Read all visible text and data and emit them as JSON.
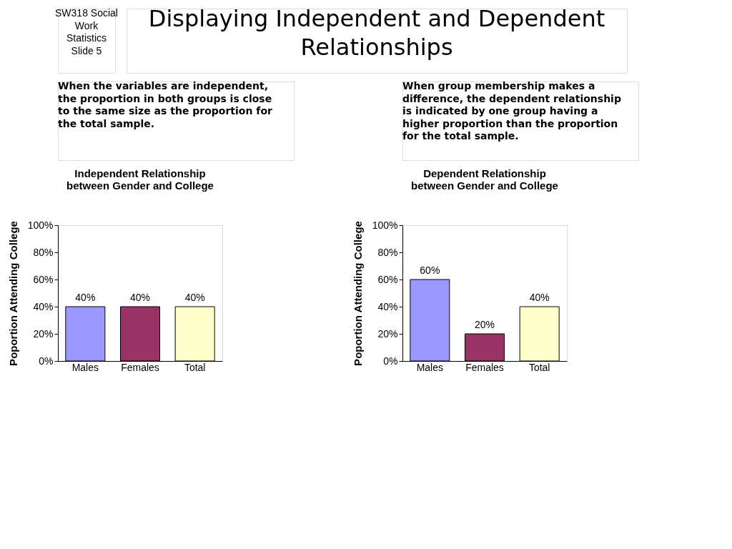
{
  "chart_data": [
    {
      "type": "bar",
      "title": "Independent Relationship between Gender and College",
      "ylabel": "Poportion Attending College",
      "annotations": [
        "SW318 Social Work Statistics Slide 5",
        "Displaying Independent and Dependent Relationships",
        "When the variables are independent, the proportion in both groups is close to the same size as the proportion for the total sample."
      ],
      "categories": [
        "Males",
        "Females",
        "Total"
      ],
      "values": [
        40,
        40,
        40
      ],
      "colors": [
        "#9999ff",
        "#993366",
        "#ffffcc"
      ],
      "value_labels": [
        "40%",
        "40%",
        "40%"
      ],
      "ylim": [
        0,
        100
      ],
      "yticks": [
        {
          "value": 0,
          "label": "0%"
        },
        {
          "value": 20,
          "label": "20%"
        },
        {
          "value": 40,
          "label": "40%"
        },
        {
          "value": 60,
          "label": "60%"
        },
        {
          "value": 80,
          "label": "80%"
        },
        {
          "value": 100,
          "label": "100%"
        }
      ],
      "grid": false
    },
    {
      "type": "bar",
      "title": "Dependent Relationship between Gender and College",
      "ylabel": "Poportion Attending College",
      "annotations": [
        "When group membership makes a difference, the dependent relationship is indicated by one group having a higher proportion than the proportion for the total sample."
      ],
      "categories": [
        "Males",
        "Females",
        "Total"
      ],
      "values": [
        60,
        20,
        40
      ],
      "colors": [
        "#9999ff",
        "#993366",
        "#ffffcc"
      ],
      "value_labels": [
        "60%",
        "20%",
        "40%"
      ],
      "ylim": [
        0,
        100
      ],
      "yticks": [
        {
          "value": 0,
          "label": "0%"
        },
        {
          "value": 20,
          "label": "20%"
        },
        {
          "value": 40,
          "label": "40%"
        },
        {
          "value": 60,
          "label": "60%"
        },
        {
          "value": 80,
          "label": "80%"
        },
        {
          "value": 100,
          "label": "100%"
        }
      ],
      "grid": false
    }
  ]
}
